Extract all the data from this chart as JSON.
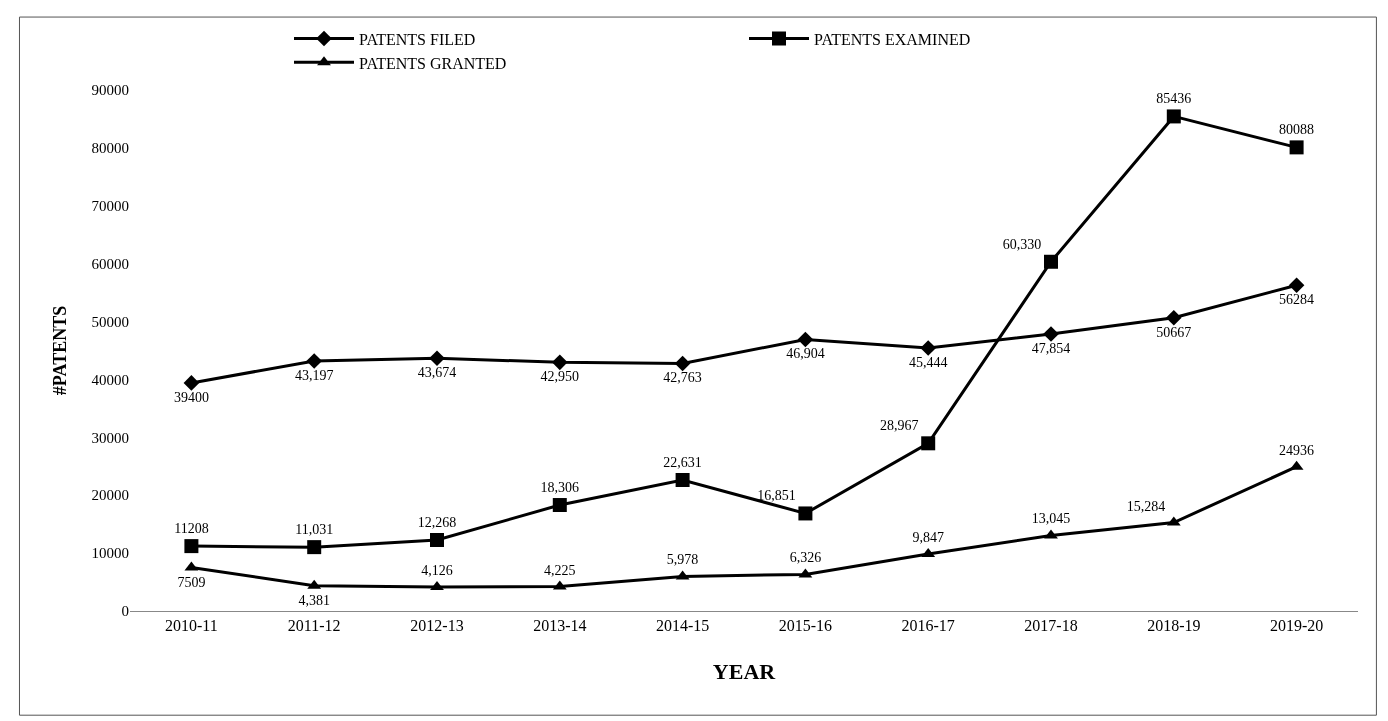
{
  "chart_data": {
    "type": "line",
    "xlabel": "YEAR",
    "ylabel": "#PATENTS",
    "categories": [
      "2010-11",
      "2011-12",
      "2012-13",
      "2013-14",
      "2014-15",
      "2015-16",
      "2016-17",
      "2017-18",
      "2018-19",
      "2019-20"
    ],
    "series": [
      {
        "name": "PATENTS FILED",
        "color": "#000000",
        "marker": "diamond",
        "values": [
          39400,
          43197,
          43674,
          42950,
          42763,
          46904,
          45444,
          47854,
          50667,
          56284
        ],
        "value_labels": [
          "39400",
          "43,197",
          "43,674",
          "42,950",
          "42,763",
          "46,904",
          "45,444",
          "47,854",
          "50667",
          "56284"
        ]
      },
      {
        "name": "PATENTS EXAMINED",
        "color": "#000000",
        "marker": "square",
        "values": [
          11208,
          11031,
          12268,
          18306,
          22631,
          16851,
          28967,
          60330,
          85436,
          80088
        ],
        "value_labels": [
          "11208",
          "11,031",
          "12,268",
          "18,306",
          "22,631",
          "16,851",
          "28,967",
          "60,330",
          "85436",
          "80088"
        ]
      },
      {
        "name": "PATENTS GRANTED",
        "color": "#000000",
        "marker": "triangle",
        "values": [
          7509,
          4381,
          4126,
          4225,
          5978,
          6326,
          9847,
          13045,
          15284,
          24936
        ],
        "value_labels": [
          "7509",
          "4,381",
          "4,126",
          "4,225",
          "5,978",
          "6,326",
          "9,847",
          "13,045",
          "15,284",
          "24936"
        ]
      }
    ],
    "ylim": [
      0,
      90000
    ],
    "yticks": [
      0,
      10000,
      20000,
      30000,
      40000,
      50000,
      60000,
      70000,
      80000,
      90000
    ],
    "legend": "top",
    "line_style": "solid"
  }
}
